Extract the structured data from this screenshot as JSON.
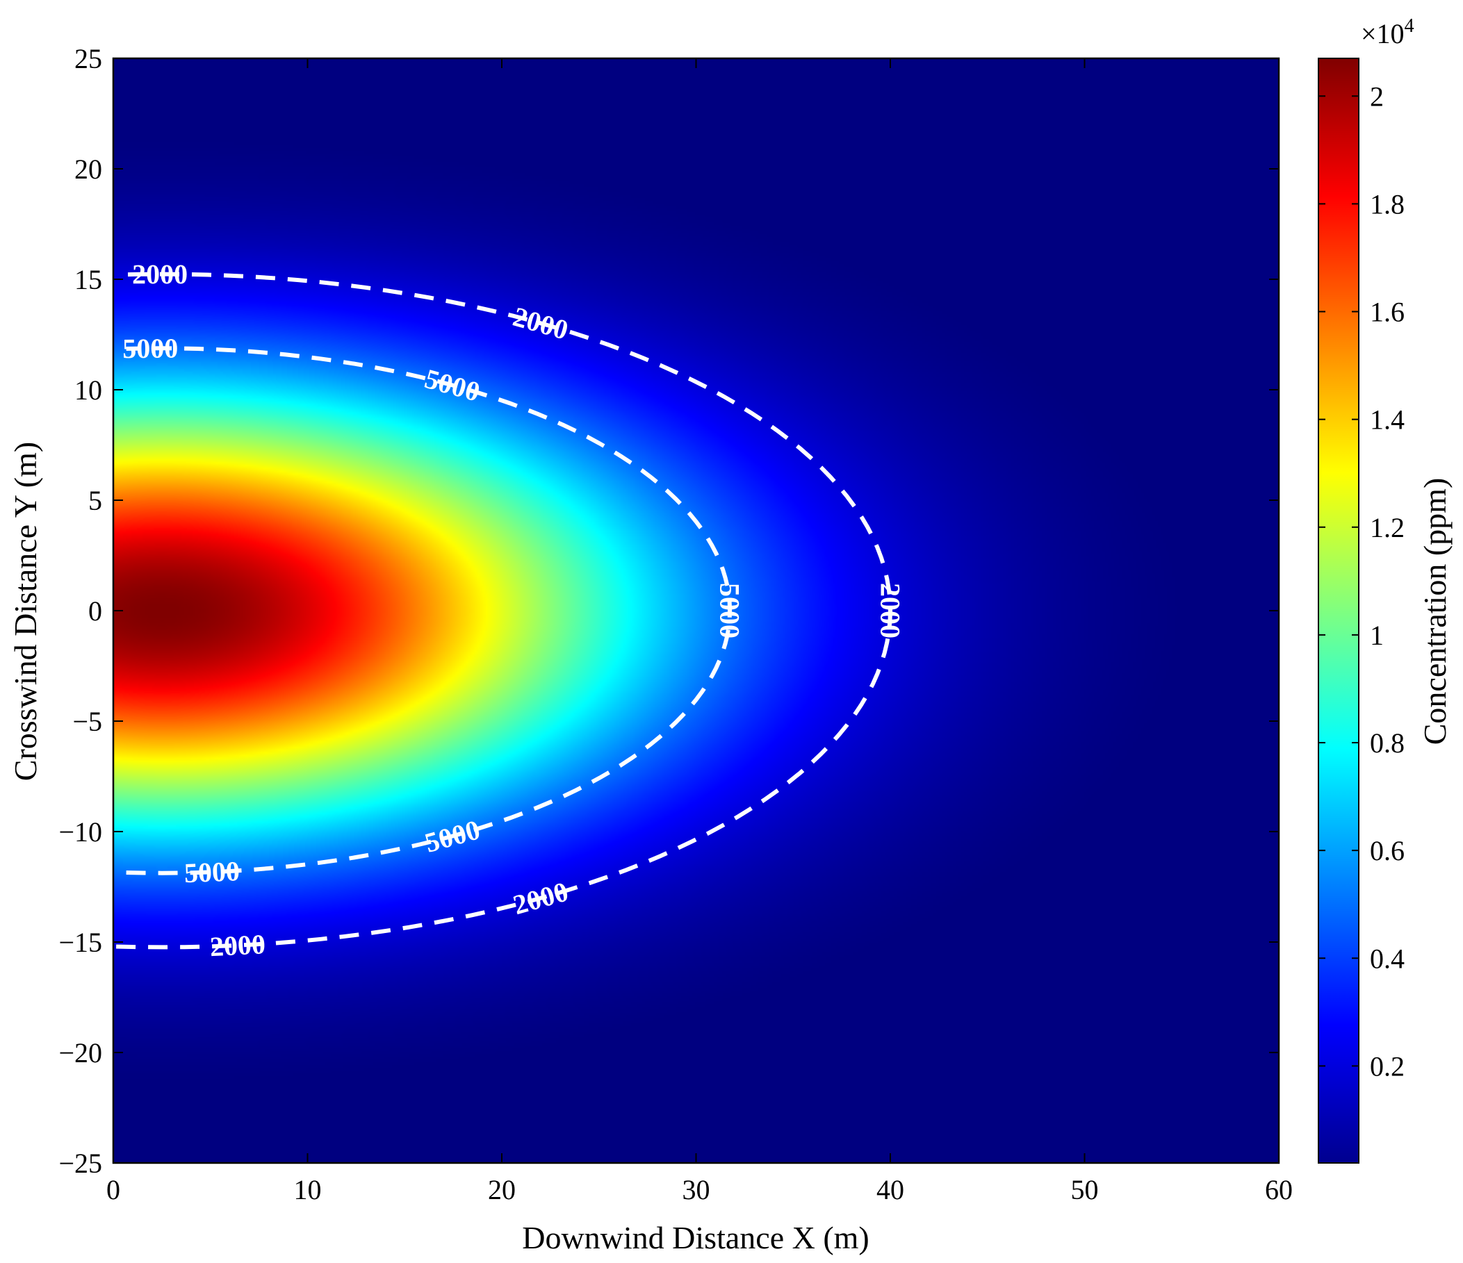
{
  "chart_data": {
    "type": "heatmap",
    "title": "",
    "xlabel": "Downwind Distance X (m)",
    "ylabel": "Crosswind Distance Y (m)",
    "xlim": [
      0,
      60
    ],
    "ylim": [
      -25,
      25
    ],
    "xticks": [
      "0",
      "10",
      "20",
      "30",
      "40",
      "50",
      "60"
    ],
    "yticks": [
      "25",
      "20",
      "15",
      "10",
      "5",
      "0",
      "−5",
      "−10",
      "−15",
      "−20",
      "−25"
    ],
    "colorbar": {
      "label": "Concentration (ppm)",
      "multiplier": "×10",
      "multiplier_exponent": "4",
      "range": [
        200,
        20700
      ],
      "ticks": [
        "2",
        "1.8",
        "1.6",
        "1.4",
        "1.2",
        "1",
        "0.8",
        "0.6",
        "0.4",
        "0.2"
      ],
      "colormap": "jet"
    },
    "field": {
      "peak_value": 20700,
      "peak_x": 2.5,
      "peak_y": 0,
      "description_values": {
        "contour_2000_extent_x": 40,
        "contour_2000_halfwidth_at_origin": 15.2,
        "contour_5000_extent_x": 31.5,
        "contour_5000_halfwidth_at_origin": 11.9
      }
    },
    "contours": [
      {
        "level": 2000,
        "label": "2000",
        "style": "dashed",
        "color": "#ffffff"
      },
      {
        "level": 5000,
        "label": "5000",
        "style": "dashed",
        "color": "#ffffff"
      }
    ],
    "grid": false
  }
}
